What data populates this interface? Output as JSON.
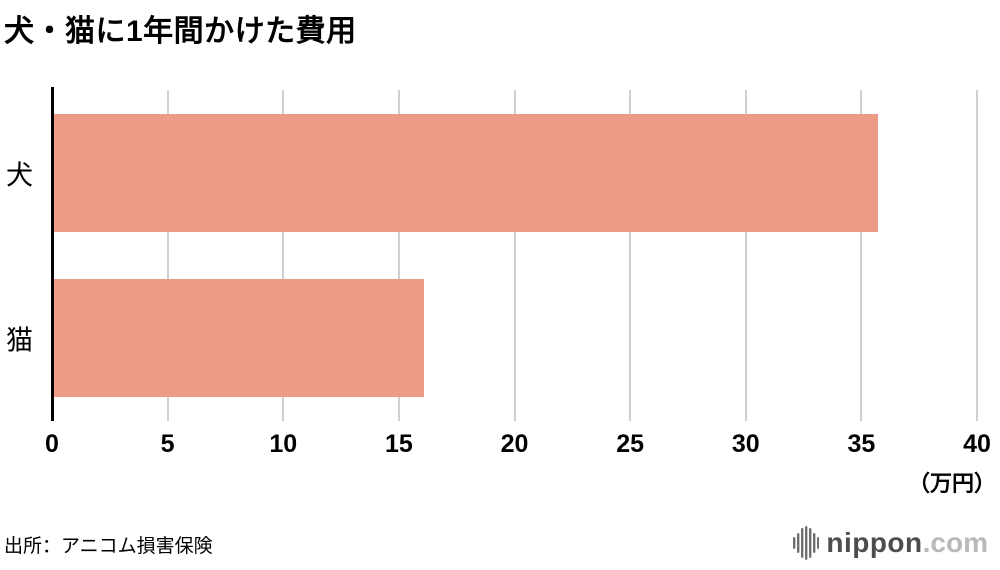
{
  "title": "犬・猫に1年間かけた費用",
  "source": "出所：アニコム損害保険",
  "logo": {
    "name": "nippon",
    "tld": ".com",
    "icon": "audio-bars-icon"
  },
  "colors": {
    "bar": "#EC9B84",
    "grid": "#d0d0d0",
    "axis": "#000000",
    "logo_text": "#4d4d4d",
    "logo_tld": "#b9b9b9"
  },
  "chart_data": {
    "type": "bar",
    "orientation": "horizontal",
    "title": "犬・猫に1年間かけた費用",
    "categories": [
      "犬",
      "猫"
    ],
    "values": [
      35.7,
      16.1
    ],
    "xlabel": "(万円)",
    "ylabel": "",
    "xlim": [
      0,
      40
    ],
    "xticks": [
      0,
      5,
      10,
      15,
      20,
      25,
      30,
      35,
      40
    ],
    "unit_label": "（万円）",
    "grid": true,
    "legend": false
  }
}
